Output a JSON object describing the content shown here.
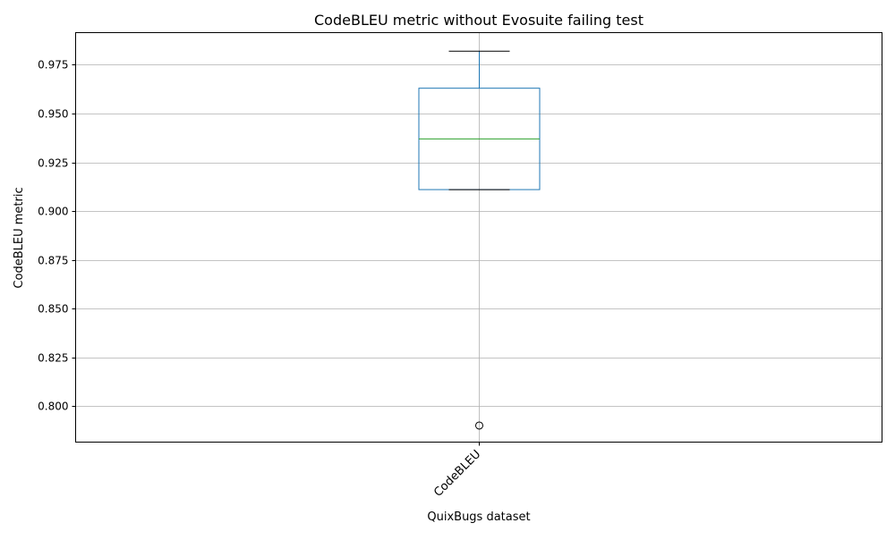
{
  "chart_data": {
    "type": "box",
    "title": "CodeBLEU metric without Evosuite failing test",
    "xlabel": "QuixBugs dataset",
    "ylabel": "CodeBLEU metric",
    "categories": [
      "CodeBLEU"
    ],
    "ylim": [
      0.7815,
      0.9915
    ],
    "yticks": [
      0.8,
      0.825,
      0.85,
      0.875,
      0.9,
      0.925,
      0.95,
      0.975
    ],
    "ytick_labels": [
      "0.800",
      "0.825",
      "0.850",
      "0.875",
      "0.900",
      "0.925",
      "0.950",
      "0.975"
    ],
    "grid": true,
    "boxes": [
      {
        "category": "CodeBLEU",
        "whisker_low": 0.911,
        "q1": 0.911,
        "median": 0.937,
        "q3": 0.963,
        "whisker_high": 0.982,
        "outliers": [
          0.79
        ]
      }
    ],
    "colors": {
      "box": "#1f77b4",
      "median": "#2ca02c",
      "whisker_cap": "#000000",
      "grid": "#b0b0b0",
      "outlier_edge": "#000000"
    }
  }
}
